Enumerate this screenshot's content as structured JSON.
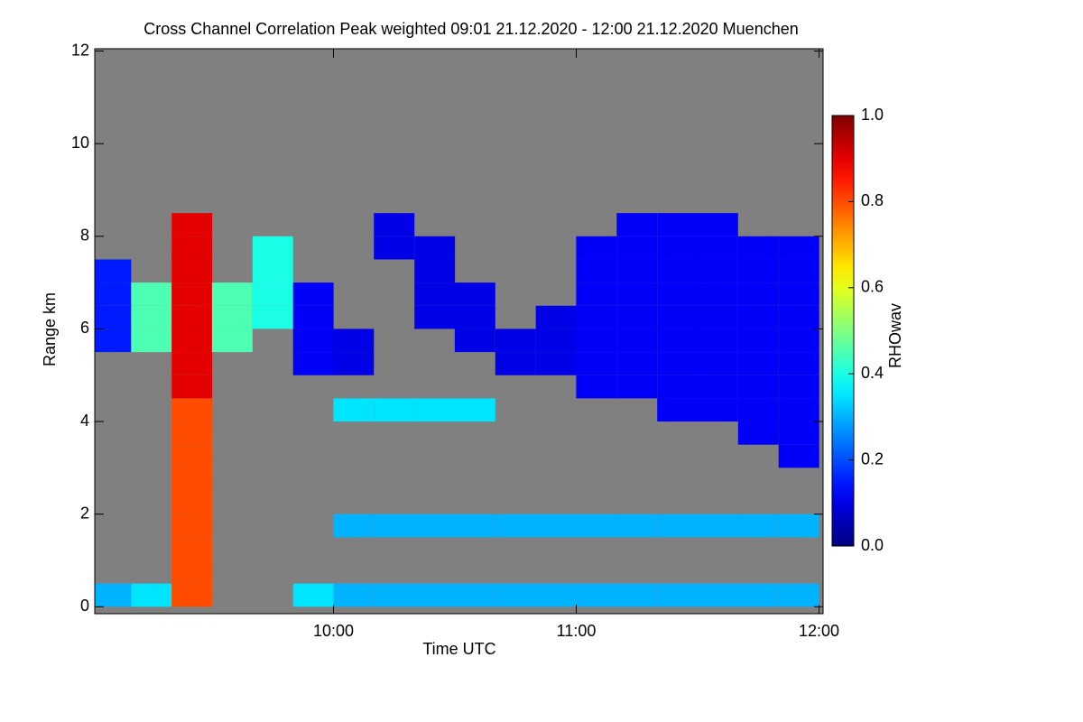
{
  "chart_data": {
    "type": "heatmap",
    "title": "Cross Channel Correlation Peak weighted   09:01 21.12.2020 - 12:00 21.12.2020 Muenchen",
    "x_label": "Time UTC",
    "y_label": "Range km",
    "colorbar_label": "RHOwav",
    "colormap": "jet",
    "background": "#808080",
    "xlim": [
      9.0167,
      12.0167
    ],
    "xticks": [
      {
        "value": 10,
        "label": "10:00"
      },
      {
        "value": 11,
        "label": "11:00"
      },
      {
        "value": 12,
        "label": "12:00"
      }
    ],
    "ylim": [
      -0.15,
      12.05
    ],
    "yticks": [
      0,
      2,
      4,
      6,
      8,
      10,
      12
    ],
    "zlim": [
      0,
      1
    ],
    "zticks": [
      {
        "value": 0,
        "label": "0.0"
      },
      0.2,
      0.4,
      0.6,
      0.8,
      {
        "value": 1,
        "label": "1.0"
      }
    ],
    "x": [
      9.083,
      9.25,
      9.417,
      9.583,
      9.75,
      9.917,
      10.083,
      10.25,
      10.417,
      10.583,
      10.75,
      10.917,
      11.083,
      11.25,
      11.417,
      11.583,
      11.75,
      11.917
    ],
    "y": [
      0.25,
      0.75,
      1.25,
      1.75,
      2.25,
      2.75,
      3.25,
      3.75,
      4.25,
      4.75,
      5.25,
      5.75,
      6.25,
      6.75,
      7.25,
      7.75,
      8.25,
      8.75,
      9.25,
      9.75,
      10.25,
      10.75,
      11.25,
      11.75
    ],
    "z": [
      [
        0.3,
        0.35,
        0.8,
        null,
        null,
        0.35,
        0.3,
        0.3,
        0.3,
        0.3,
        0.3,
        0.3,
        0.3,
        0.3,
        0.3,
        0.3,
        0.3,
        0.3
      ],
      [
        null,
        null,
        0.8,
        null,
        null,
        null,
        null,
        null,
        null,
        null,
        null,
        null,
        null,
        null,
        null,
        null,
        null,
        null
      ],
      [
        null,
        null,
        0.8,
        null,
        null,
        null,
        null,
        null,
        null,
        null,
        null,
        null,
        null,
        null,
        null,
        null,
        null,
        null
      ],
      [
        null,
        null,
        0.8,
        null,
        null,
        null,
        0.3,
        0.3,
        0.3,
        0.3,
        0.3,
        0.3,
        0.3,
        0.3,
        0.3,
        0.3,
        0.3,
        0.3
      ],
      [
        null,
        null,
        0.8,
        null,
        null,
        null,
        null,
        null,
        null,
        null,
        null,
        null,
        null,
        null,
        null,
        null,
        null,
        null
      ],
      [
        null,
        null,
        0.8,
        null,
        null,
        null,
        null,
        null,
        null,
        null,
        null,
        null,
        null,
        null,
        null,
        null,
        null,
        null
      ],
      [
        null,
        null,
        0.8,
        null,
        null,
        null,
        null,
        null,
        null,
        null,
        null,
        null,
        null,
        null,
        null,
        null,
        null,
        0.12
      ],
      [
        null,
        null,
        0.8,
        null,
        null,
        null,
        null,
        null,
        null,
        null,
        null,
        null,
        null,
        null,
        null,
        null,
        0.12,
        0.12
      ],
      [
        null,
        null,
        0.8,
        null,
        null,
        null,
        0.35,
        0.35,
        0.35,
        0.35,
        null,
        null,
        null,
        null,
        0.12,
        0.12,
        0.12,
        0.12
      ],
      [
        null,
        null,
        0.9,
        null,
        null,
        null,
        null,
        null,
        null,
        null,
        null,
        null,
        0.12,
        0.12,
        0.12,
        0.12,
        0.12,
        0.12
      ],
      [
        null,
        null,
        0.9,
        null,
        null,
        0.12,
        0.1,
        null,
        null,
        null,
        0.1,
        0.1,
        0.12,
        0.12,
        0.12,
        0.12,
        0.12,
        0.12
      ],
      [
        0.15,
        0.45,
        0.9,
        0.45,
        null,
        0.12,
        0.1,
        null,
        null,
        0.1,
        0.1,
        0.1,
        0.12,
        0.12,
        0.12,
        0.12,
        0.12,
        0.12
      ],
      [
        0.15,
        0.45,
        0.9,
        0.45,
        0.4,
        0.12,
        null,
        null,
        0.1,
        0.1,
        null,
        0.1,
        0.12,
        0.12,
        0.12,
        0.12,
        0.12,
        0.12
      ],
      [
        0.15,
        0.45,
        0.9,
        0.45,
        0.4,
        0.12,
        null,
        null,
        0.1,
        0.1,
        null,
        null,
        0.12,
        0.12,
        0.12,
        0.12,
        0.12,
        0.12
      ],
      [
        0.15,
        null,
        0.9,
        null,
        0.4,
        null,
        null,
        null,
        0.1,
        null,
        null,
        null,
        0.12,
        0.12,
        0.12,
        0.12,
        0.12,
        0.12
      ],
      [
        null,
        null,
        0.9,
        null,
        0.4,
        null,
        null,
        0.1,
        0.1,
        null,
        null,
        null,
        0.12,
        0.12,
        0.12,
        0.12,
        0.12,
        0.12
      ],
      [
        null,
        null,
        0.9,
        null,
        null,
        null,
        null,
        0.1,
        null,
        null,
        null,
        null,
        null,
        0.12,
        0.12,
        0.12,
        null,
        null
      ],
      [
        null,
        null,
        null,
        null,
        null,
        null,
        null,
        null,
        null,
        null,
        null,
        null,
        null,
        null,
        null,
        null,
        null,
        null
      ],
      [
        null,
        null,
        null,
        null,
        null,
        null,
        null,
        null,
        null,
        null,
        null,
        null,
        null,
        null,
        null,
        null,
        null,
        null
      ],
      [
        null,
        null,
        null,
        null,
        null,
        null,
        null,
        null,
        null,
        null,
        null,
        null,
        null,
        null,
        null,
        null,
        null,
        null
      ],
      [
        null,
        null,
        null,
        null,
        null,
        null,
        null,
        null,
        null,
        null,
        null,
        null,
        null,
        null,
        null,
        null,
        null,
        null
      ],
      [
        null,
        null,
        null,
        null,
        null,
        null,
        null,
        null,
        null,
        null,
        null,
        null,
        null,
        null,
        null,
        null,
        null,
        null
      ],
      [
        null,
        null,
        null,
        null,
        null,
        null,
        null,
        null,
        null,
        null,
        null,
        null,
        null,
        null,
        null,
        null,
        null,
        null
      ],
      [
        null,
        null,
        null,
        null,
        null,
        null,
        null,
        null,
        null,
        null,
        null,
        null,
        null,
        null,
        null,
        null,
        null,
        null
      ]
    ]
  }
}
